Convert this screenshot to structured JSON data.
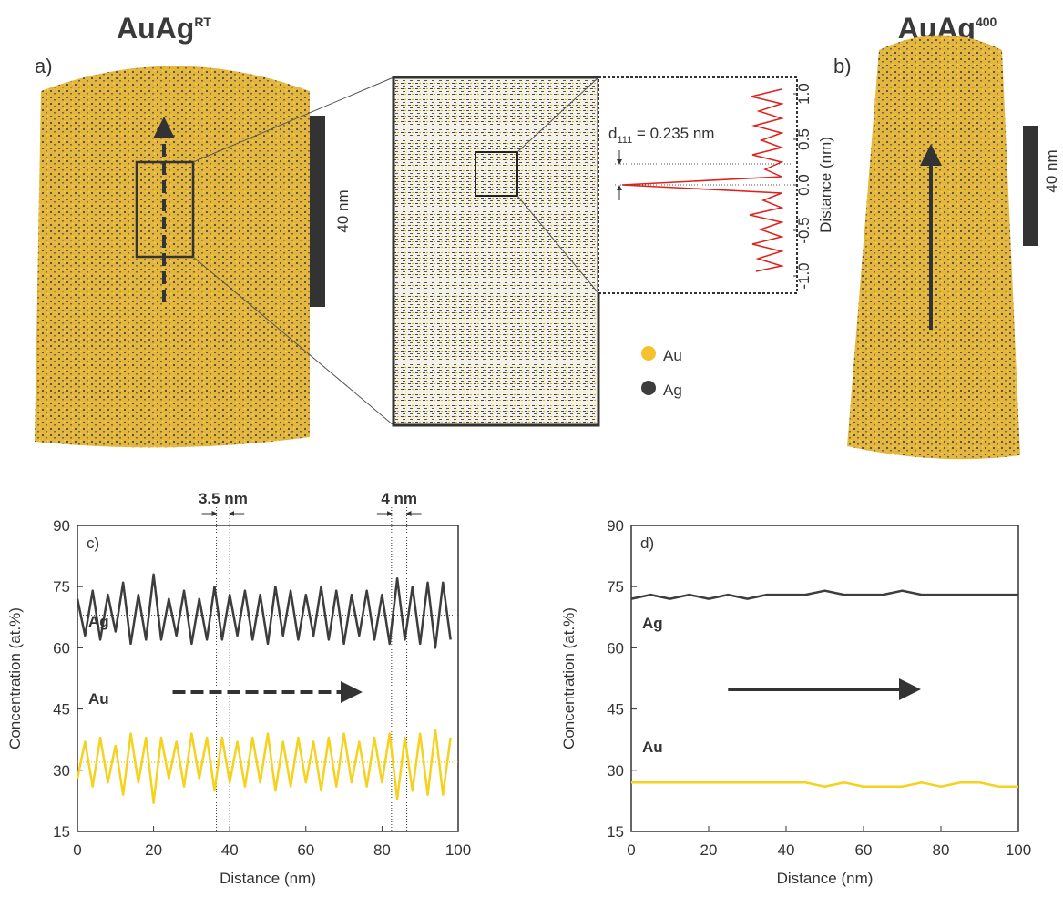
{
  "figure": {
    "panel_a": {
      "label": "a)",
      "title": "AuAg",
      "title_sup": "RT",
      "scale_bar": "40 nm"
    },
    "panel_b": {
      "label": "b)",
      "title": "AuAg",
      "title_sup": "400",
      "scale_bar": "40 nm"
    },
    "legend": [
      {
        "name": "Au",
        "color": "#f7c12e"
      },
      {
        "name": "Ag",
        "color": "#3d3d3d"
      }
    ],
    "inset": {
      "annotation_main": "d",
      "annotation_sub": "111",
      "annotation_rest": " = 0.235 nm",
      "axis_label": "Distance (nm)",
      "ticks": [
        {
          "value": 1,
          "label": "1.0"
        },
        {
          "value": 0.5,
          "label": "0.5"
        },
        {
          "value": 0,
          "label": "0.0"
        },
        {
          "value": -0.5,
          "label": "-0.5"
        },
        {
          "value": -1,
          "label": "-1.0"
        }
      ]
    }
  },
  "chart_data": [
    {
      "type": "line",
      "panel_label": "c)",
      "x_label": "Distance (nm)",
      "y_label": "Concentration (at.%)",
      "xlim": [
        0,
        100
      ],
      "xticks": [
        0,
        20,
        40,
        60,
        80,
        100
      ],
      "ylim": [
        15,
        90
      ],
      "yticks": [
        15,
        30,
        45,
        60,
        75,
        90
      ],
      "x": [
        0,
        2,
        4,
        6,
        8,
        10,
        12,
        14,
        16,
        18,
        20,
        22,
        24,
        26,
        28,
        30,
        32,
        34,
        36,
        38,
        40,
        42,
        44,
        46,
        48,
        50,
        52,
        54,
        56,
        58,
        60,
        62,
        64,
        66,
        68,
        70,
        72,
        74,
        76,
        78,
        80,
        82,
        84,
        86,
        88,
        90,
        92,
        94,
        96,
        98
      ],
      "series": [
        {
          "name": "Ag",
          "color": "#3d3d3d",
          "values": [
            72,
            63,
            74,
            62,
            73,
            64,
            76,
            61,
            73,
            62,
            78,
            62,
            72,
            63,
            74,
            61,
            72,
            62,
            75,
            62,
            73,
            63,
            74,
            62,
            73,
            61,
            75,
            63,
            74,
            62,
            73,
            63,
            75,
            62,
            74,
            61,
            73,
            63,
            74,
            62,
            73,
            61,
            77,
            62,
            75,
            61,
            76,
            60,
            76,
            62
          ]
        },
        {
          "name": "Au",
          "color": "#f5d21e",
          "values": [
            28,
            37,
            26,
            38,
            27,
            36,
            24,
            39,
            27,
            38,
            22,
            38,
            28,
            37,
            26,
            39,
            28,
            38,
            25,
            38,
            27,
            37,
            26,
            38,
            27,
            39,
            25,
            37,
            26,
            38,
            27,
            37,
            25,
            38,
            26,
            39,
            27,
            37,
            26,
            38,
            27,
            39,
            23,
            38,
            25,
            39,
            24,
            40,
            24,
            38
          ]
        }
      ],
      "hlines": [
        68,
        32
      ],
      "vlines": [
        36.5,
        40,
        82.5,
        86.5
      ],
      "annotations": [
        "3.5 nm",
        "4 nm"
      ]
    },
    {
      "type": "line",
      "panel_label": "d)",
      "x_label": "Distance (nm)",
      "y_label": "Concentration (at.%)",
      "xlim": [
        0,
        100
      ],
      "xticks": [
        0,
        20,
        40,
        60,
        80,
        100
      ],
      "ylim": [
        15,
        90
      ],
      "yticks": [
        15,
        30,
        45,
        60,
        75,
        90
      ],
      "x": [
        0,
        5,
        10,
        15,
        20,
        25,
        30,
        35,
        40,
        45,
        50,
        55,
        60,
        65,
        70,
        75,
        80,
        85,
        90,
        95,
        100
      ],
      "series": [
        {
          "name": "Ag",
          "color": "#3d3d3d",
          "values": [
            72,
            73,
            72,
            73,
            72,
            73,
            72,
            73,
            73,
            73,
            74,
            73,
            73,
            73,
            74,
            73,
            73,
            73,
            73,
            73,
            73
          ]
        },
        {
          "name": "Au",
          "color": "#f5d21e",
          "values": [
            27,
            27,
            27,
            27,
            27,
            27,
            27,
            27,
            27,
            27,
            26,
            27,
            26,
            26,
            26,
            27,
            26,
            27,
            27,
            26,
            26
          ]
        }
      ]
    }
  ]
}
